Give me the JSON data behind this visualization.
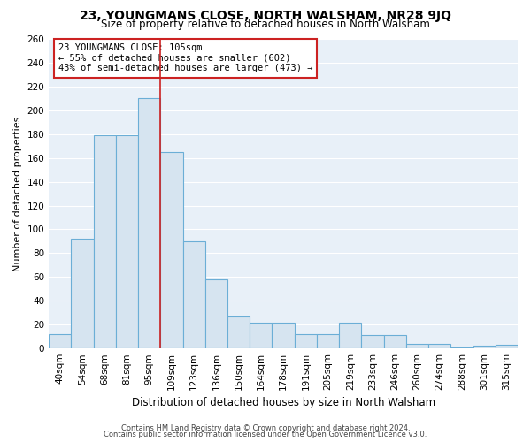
{
  "title": "23, YOUNGMANS CLOSE, NORTH WALSHAM, NR28 9JQ",
  "subtitle": "Size of property relative to detached houses in North Walsham",
  "xlabel": "Distribution of detached houses by size in North Walsham",
  "ylabel": "Number of detached properties",
  "bar_labels": [
    "40sqm",
    "54sqm",
    "68sqm",
    "81sqm",
    "95sqm",
    "109sqm",
    "123sqm",
    "136sqm",
    "150sqm",
    "164sqm",
    "178sqm",
    "191sqm",
    "205sqm",
    "219sqm",
    "233sqm",
    "246sqm",
    "260sqm",
    "274sqm",
    "288sqm",
    "301sqm",
    "315sqm"
  ],
  "bar_heights": [
    12,
    92,
    179,
    179,
    210,
    165,
    90,
    58,
    27,
    22,
    22,
    12,
    12,
    22,
    11,
    11,
    4,
    4,
    1,
    2,
    3
  ],
  "bar_color": "#d6e4f0",
  "bar_edge_color": "#6baed6",
  "marker_line_color": "#cc2222",
  "annotation_text": "23 YOUNGMANS CLOSE: 105sqm\n← 55% of detached houses are smaller (602)\n43% of semi-detached houses are larger (473) →",
  "annotation_box_edge_color": "#cc2222",
  "ylim": [
    0,
    260
  ],
  "yticks": [
    0,
    20,
    40,
    60,
    80,
    100,
    120,
    140,
    160,
    180,
    200,
    220,
    240,
    260
  ],
  "footer_line1": "Contains HM Land Registry data © Crown copyright and database right 2024.",
  "footer_line2": "Contains public sector information licensed under the Open Government Licence v3.0.",
  "bg_color": "#ffffff",
  "plot_bg_color": "#e8f0f8",
  "grid_color": "#ffffff",
  "title_fontsize": 10,
  "subtitle_fontsize": 8.5,
  "ylabel_fontsize": 8,
  "xlabel_fontsize": 8.5,
  "tick_fontsize": 7.5,
  "footer_fontsize": 6
}
